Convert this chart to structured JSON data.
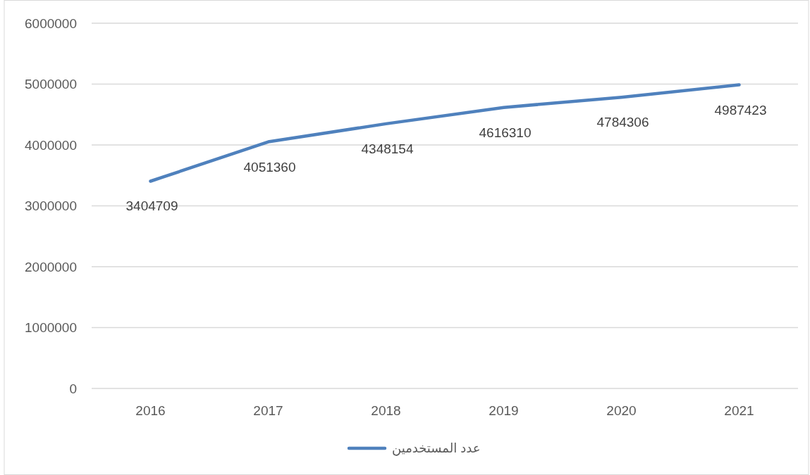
{
  "chart_data": {
    "type": "line",
    "categories": [
      "2016",
      "2017",
      "2018",
      "2019",
      "2020",
      "2021"
    ],
    "series": [
      {
        "name": "عدد المستخدمين",
        "color": "#4f81bd",
        "values": [
          3404709,
          4051360,
          4348154,
          4616310,
          4784306,
          4987423
        ]
      }
    ],
    "ylim": [
      0,
      6000000
    ],
    "yticks": [
      0,
      1000000,
      2000000,
      3000000,
      4000000,
      5000000,
      6000000
    ],
    "grid": "y",
    "legend": "bottom",
    "data_labels": true,
    "marker": "none",
    "line_style": "solid"
  }
}
